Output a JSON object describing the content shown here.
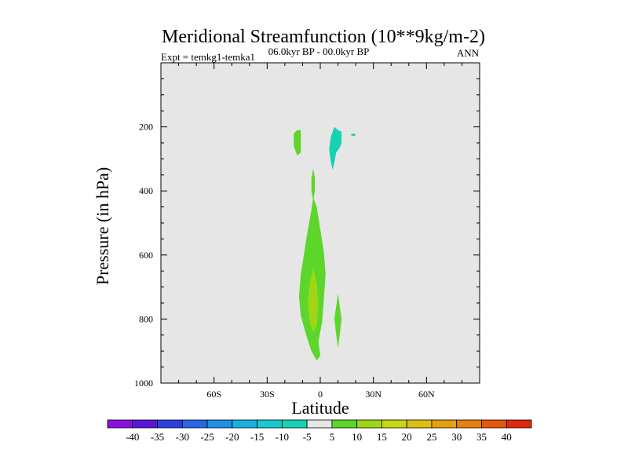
{
  "chart_data": {
    "type": "heatmap",
    "title": "Meridional Streamfunction (10**9kg/m-2)",
    "subtitle_left": "Expt = temkg1-temka1",
    "subtitle_center": "06.0kyr BP - 00.0kyr BP",
    "subtitle_right": "ANN",
    "xlabel": "Latitude",
    "ylabel": "Pressure (in hPa)",
    "xlim": [
      -90,
      90
    ],
    "ylim": [
      0,
      1000
    ],
    "y_inverted": true,
    "x_ticks": [
      {
        "value": -60,
        "label": "60S"
      },
      {
        "value": -30,
        "label": "30S"
      },
      {
        "value": 0,
        "label": "0"
      },
      {
        "value": 30,
        "label": "30N"
      },
      {
        "value": 60,
        "label": "60N"
      }
    ],
    "y_ticks": [
      {
        "value": 200,
        "label": "200"
      },
      {
        "value": 400,
        "label": "400"
      },
      {
        "value": 600,
        "label": "600"
      },
      {
        "value": 800,
        "label": "800"
      },
      {
        "value": 1000,
        "label": "1000"
      }
    ],
    "background_color": "#e6e6e6",
    "colorbar": {
      "levels": [
        "-40",
        "-35",
        "-30",
        "-25",
        "-20",
        "-15",
        "-10",
        "-5",
        "5",
        "10",
        "15",
        "20",
        "25",
        "30",
        "35",
        "40"
      ],
      "colors": [
        "#8b10e0",
        "#5a16d6",
        "#2d3ee0",
        "#2866e6",
        "#1e90e6",
        "#18b0e0",
        "#16c8d2",
        "#16d2b0",
        "#e6e6e6",
        "#5cd62a",
        "#9ed616",
        "#c8d616",
        "#dcc010",
        "#e6a00e",
        "#e6800e",
        "#e6560e",
        "#e0280e"
      ]
    },
    "regions": [
      {
        "color": "#5cd62a",
        "points": [
          [
            -2,
            930
          ],
          [
            -5,
            900
          ],
          [
            -8,
            850
          ],
          [
            -11,
            790
          ],
          [
            -12,
            730
          ],
          [
            -11,
            660
          ],
          [
            -9,
            590
          ],
          [
            -7,
            520
          ],
          [
            -5,
            460
          ],
          [
            -4,
            420
          ],
          [
            -2,
            450
          ],
          [
            0,
            520
          ],
          [
            2,
            590
          ],
          [
            3,
            660
          ],
          [
            2,
            740
          ],
          [
            1,
            810
          ],
          [
            -1,
            870
          ],
          [
            0,
            915
          ]
        ]
      },
      {
        "color": "#5cd62a",
        "points": [
          [
            -4,
            330
          ],
          [
            -5,
            360
          ],
          [
            -5,
            400
          ],
          [
            -4,
            430
          ],
          [
            -3,
            400
          ],
          [
            -3,
            360
          ]
        ]
      },
      {
        "color": "#9ed616",
        "points": [
          [
            -4,
            640
          ],
          [
            -6,
            690
          ],
          [
            -7,
            750
          ],
          [
            -6,
            810
          ],
          [
            -4,
            840
          ],
          [
            -2,
            820
          ],
          [
            -1,
            760
          ],
          [
            -2,
            690
          ]
        ]
      },
      {
        "color": "#5cd62a",
        "points": [
          [
            -13,
            210
          ],
          [
            -15,
            220
          ],
          [
            -15,
            260
          ],
          [
            -13,
            290
          ],
          [
            -11,
            280
          ],
          [
            -11,
            240
          ],
          [
            -11,
            210
          ]
        ]
      },
      {
        "color": "#5cd62a",
        "points": [
          [
            10,
            720
          ],
          [
            9,
            760
          ],
          [
            8,
            800
          ],
          [
            9,
            850
          ],
          [
            10,
            890
          ],
          [
            11,
            850
          ],
          [
            12,
            800
          ],
          [
            11,
            760
          ]
        ]
      },
      {
        "color": "#16d2b0",
        "points": [
          [
            8,
            200
          ],
          [
            6,
            230
          ],
          [
            5,
            270
          ],
          [
            6,
            310
          ],
          [
            7,
            335
          ],
          [
            8,
            310
          ],
          [
            9,
            280
          ],
          [
            11,
            265
          ],
          [
            12,
            250
          ],
          [
            12,
            215
          ],
          [
            10,
            210
          ]
        ]
      },
      {
        "color": "#16d2b0",
        "points": [
          [
            17,
            225
          ],
          [
            19,
            220
          ],
          [
            20,
            225
          ],
          [
            19,
            230
          ]
        ]
      }
    ]
  }
}
